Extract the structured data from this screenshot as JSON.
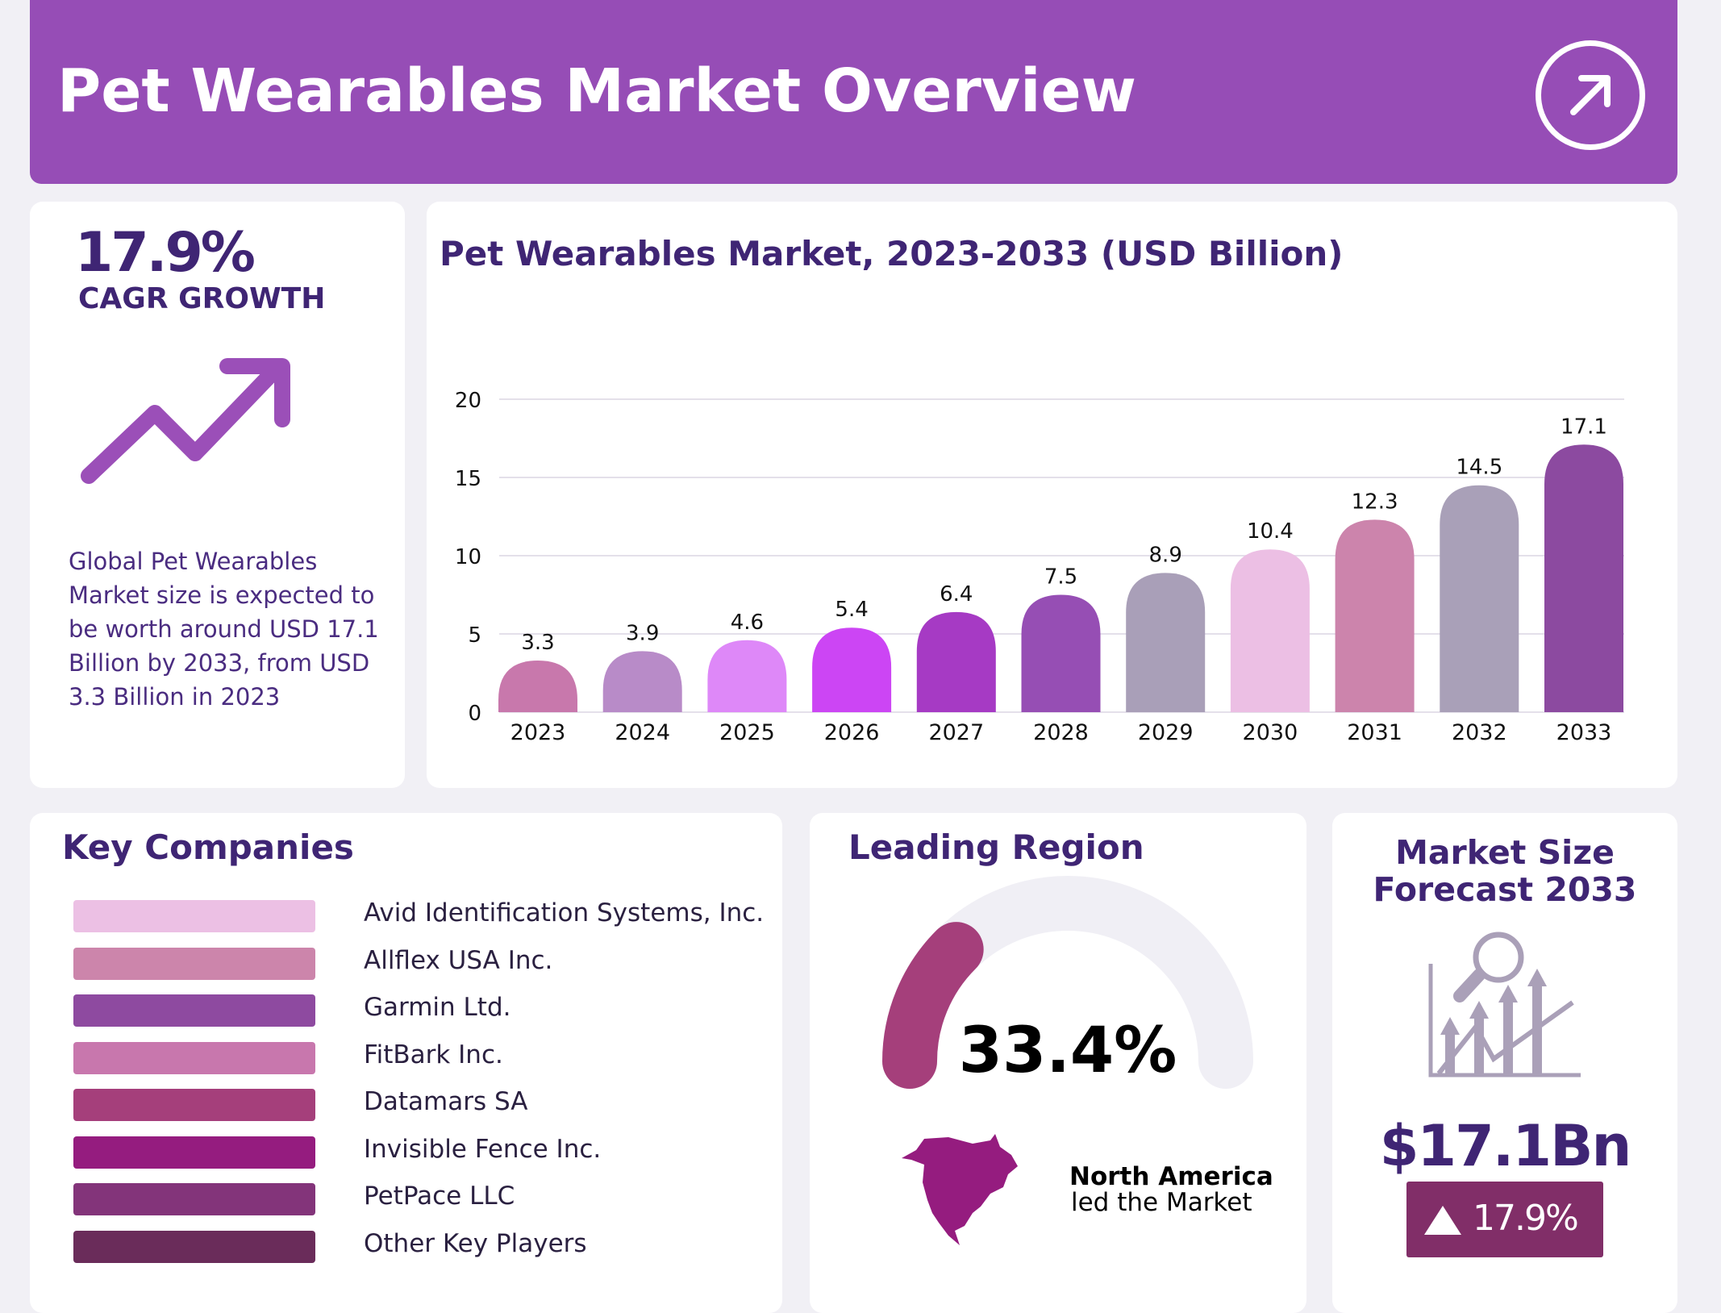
{
  "header": {
    "title": "Pet Wearables Market Overview",
    "icon": "arrow-up-right-circle-icon"
  },
  "cagr": {
    "value": "17.9%",
    "label": "CAGR GROWTH",
    "icon": "trend-up-arrow-icon",
    "description": "Global Pet Wearables Market size is expected to be worth around USD 17.1 Billion by 2033, from USD 3.3 Billion in 2023",
    "accent": "#9b4fb8"
  },
  "chart_data": {
    "type": "bar",
    "title": "Pet Wearables Market, 2023-2033 (USD Billion)",
    "categories": [
      "2023",
      "2024",
      "2025",
      "2026",
      "2027",
      "2028",
      "2029",
      "2030",
      "2031",
      "2032",
      "2033"
    ],
    "values": [
      3.3,
      3.9,
      4.6,
      5.4,
      6.4,
      7.5,
      8.9,
      10.4,
      12.3,
      14.5,
      17.1
    ],
    "colors": [
      "#c878ac",
      "#b88bc8",
      "#de88f8",
      "#cc45f4",
      "#a63ac4",
      "#964eb4",
      "#a99fb8",
      "#ecbfe4",
      "#cc84ac",
      "#a9a0b8",
      "#8c4aa0"
    ],
    "ylim": [
      0,
      20
    ],
    "yticks": [
      0,
      5,
      10,
      15,
      20
    ],
    "grid": true
  },
  "companies": {
    "title": "Key Companies",
    "items": [
      {
        "name": "Avid Identification Systems, Inc.",
        "color": "#ecc0e4"
      },
      {
        "name": "Allflex USA Inc.",
        "color": "#cc85ab"
      },
      {
        "name": "Garmin Ltd.",
        "color": "#8e4aa0"
      },
      {
        "name": "FitBark Inc.",
        "color": "#c877ad"
      },
      {
        "name": "Datamars SA",
        "color": "#a53f7b"
      },
      {
        "name": "Invisible Fence Inc.",
        "color": "#951c7f"
      },
      {
        "name": "PetPace LLC",
        "color": "#83347a"
      },
      {
        "name": "Other Key Players",
        "color": "#6a2c5a"
      }
    ]
  },
  "region": {
    "title": "Leading Region",
    "share": "33.4%",
    "share_fraction": 0.334,
    "gauge_color": "#a53f7b",
    "track_color": "#f0eff5",
    "region_name": "North America",
    "subtitle": "led the Market",
    "map_icon": "north-america-map-icon",
    "map_color": "#951c7f"
  },
  "forecast": {
    "title_line1": "Market Size",
    "title_line2": "Forecast 2033",
    "value": "$17.1Bn",
    "growth": "17.9%",
    "icon": "chart-magnifier-growth-icon",
    "badge_color": "#812e68"
  }
}
